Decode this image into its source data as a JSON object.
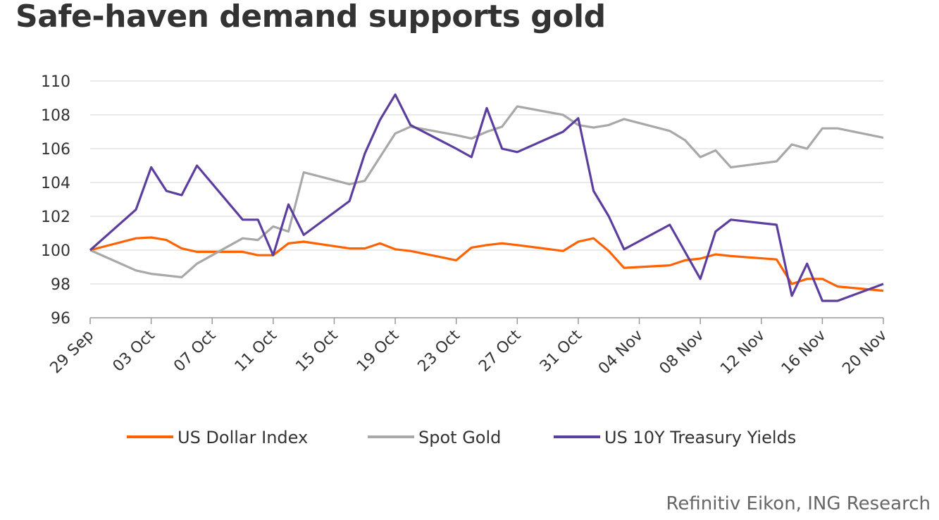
{
  "chart_data": {
    "type": "line",
    "title": "Safe-haven demand supports gold",
    "source": "Refinitiv Eikon, ING Research",
    "xlabel": "",
    "ylabel": "",
    "ylim": [
      96,
      110
    ],
    "yticks": [
      96,
      98,
      100,
      102,
      104,
      106,
      108,
      110
    ],
    "x_unit": "days since 29 Sep",
    "xlim": [
      0,
      52
    ],
    "xticks": [
      {
        "day": 0,
        "label": "29 Sep"
      },
      {
        "day": 4,
        "label": "03 Oct"
      },
      {
        "day": 8,
        "label": "07 Oct"
      },
      {
        "day": 12,
        "label": "11 Oct"
      },
      {
        "day": 16,
        "label": "15 Oct"
      },
      {
        "day": 20,
        "label": "19 Oct"
      },
      {
        "day": 24,
        "label": "23 Oct"
      },
      {
        "day": 28,
        "label": "27 Oct"
      },
      {
        "day": 32,
        "label": "31 Oct"
      },
      {
        "day": 36,
        "label": "04 Nov"
      },
      {
        "day": 40,
        "label": "08 Nov"
      },
      {
        "day": 44,
        "label": "12 Nov"
      },
      {
        "day": 48,
        "label": "16 Nov"
      },
      {
        "day": 52,
        "label": "20 Nov"
      }
    ],
    "grid": true,
    "legend_position": "bottom",
    "x": [
      0,
      3,
      4,
      5,
      6,
      7,
      10,
      11,
      12,
      13,
      14,
      17,
      18,
      19,
      20,
      21,
      24,
      25,
      26,
      27,
      28,
      31,
      32,
      33,
      34,
      35,
      38,
      39,
      40,
      41,
      42,
      45,
      46,
      47,
      48,
      49,
      52
    ],
    "series": [
      {
        "name": "US Dollar Index",
        "color": "#FF6200",
        "values": [
          100,
          100.7,
          100.75,
          100.6,
          100.1,
          99.9,
          99.9,
          99.7,
          99.7,
          100.4,
          100.5,
          100.1,
          100.1,
          100.4,
          100.05,
          99.95,
          99.4,
          100.15,
          100.3,
          100.4,
          100.3,
          99.95,
          100.5,
          100.7,
          99.95,
          98.95,
          99.1,
          99.4,
          99.5,
          99.75,
          99.65,
          99.45,
          98.0,
          98.3,
          98.3,
          97.85,
          97.6
        ]
      },
      {
        "name": "Spot Gold",
        "color": "#A8A8A8",
        "values": [
          100,
          98.8,
          98.6,
          98.5,
          98.4,
          99.2,
          100.7,
          100.6,
          101.4,
          101.1,
          104.6,
          103.9,
          104.1,
          105.5,
          106.9,
          107.3,
          106.8,
          106.6,
          107.0,
          107.3,
          108.5,
          108.0,
          107.4,
          107.25,
          107.4,
          107.75,
          107.05,
          106.5,
          105.5,
          105.9,
          104.9,
          105.25,
          106.25,
          106.0,
          107.2,
          107.2,
          106.65
        ]
      },
      {
        "name": "US 10Y Treasury Yields",
        "color": "#5B3E9E",
        "values": [
          100,
          102.4,
          104.9,
          103.5,
          103.25,
          105.0,
          101.8,
          101.8,
          99.7,
          102.7,
          100.9,
          102.9,
          105.7,
          107.7,
          109.2,
          107.4,
          106.0,
          105.5,
          108.4,
          106.0,
          105.8,
          107.0,
          107.8,
          103.5,
          102.0,
          100.05,
          101.5,
          99.9,
          98.3,
          101.1,
          101.8,
          101.5,
          97.3,
          99.2,
          97.0,
          97.0,
          98.0
        ]
      }
    ]
  }
}
